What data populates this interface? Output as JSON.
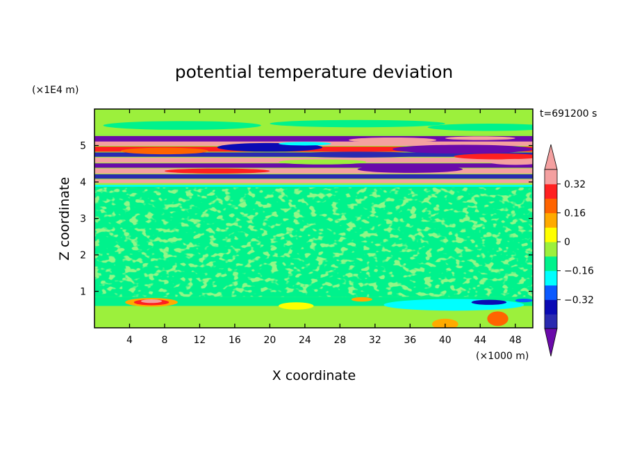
{
  "chart_data": {
    "type": "heatmap",
    "title": "potential temperature deviation",
    "xlabel": "X coordinate",
    "ylabel": "Z coordinate",
    "x_unit": "(×1000 m)",
    "y_unit": "(×1E4 m)",
    "time_label": "t=691200 s",
    "xlim": [
      0,
      50
    ],
    "ylim": [
      0,
      6
    ],
    "x_ticks": [
      4,
      8,
      12,
      16,
      20,
      24,
      28,
      32,
      36,
      40,
      44,
      48
    ],
    "x_tick_labels": [
      "4",
      "8",
      "12",
      "16",
      "20",
      "24",
      "28",
      "32",
      "36",
      "40",
      "44",
      "48"
    ],
    "y_ticks": [
      1,
      2,
      3,
      4,
      5
    ],
    "y_tick_labels": [
      "1",
      "2",
      "3",
      "4",
      "5"
    ],
    "colorbar": {
      "levels": [
        -0.48,
        -0.4,
        -0.32,
        -0.24,
        -0.16,
        -0.08,
        0,
        0.08,
        0.16,
        0.24,
        0.32,
        0.4
      ],
      "colors": [
        "#6a0aaa",
        "#2a2ab0",
        "#0a0ab4",
        "#0a5aff",
        "#00ffff",
        "#00f28c",
        "#9cf03c",
        "#ffff00",
        "#ffaa00",
        "#ff6400",
        "#ff2020",
        "#f4a0a0"
      ],
      "tick_values": [
        0.32,
        0.16,
        0,
        -0.16,
        -0.32
      ],
      "tick_labels": [
        "0.32",
        "0.16",
        "0",
        "−0.16",
        "−0.32"
      ],
      "extend": "both"
    },
    "features": [
      {
        "z_range": [
          0,
          0.85
        ],
        "description_value": "near-zero green field with warm anomaly up to 0.32 near x=4-9, cool anomaly down to -0.32 near x=30-50"
      },
      {
        "z_range": [
          0.85,
          3.9
        ],
        "description_value": "mottled 0 to -0.08 (green / sea-green)"
      },
      {
        "z_range": [
          3.9,
          5.3
        ],
        "description_value": "strong alternating layers from -0.48 to 0.4"
      },
      {
        "z_range": [
          5.3,
          6
        ],
        "description_value": "near zero"
      }
    ]
  }
}
